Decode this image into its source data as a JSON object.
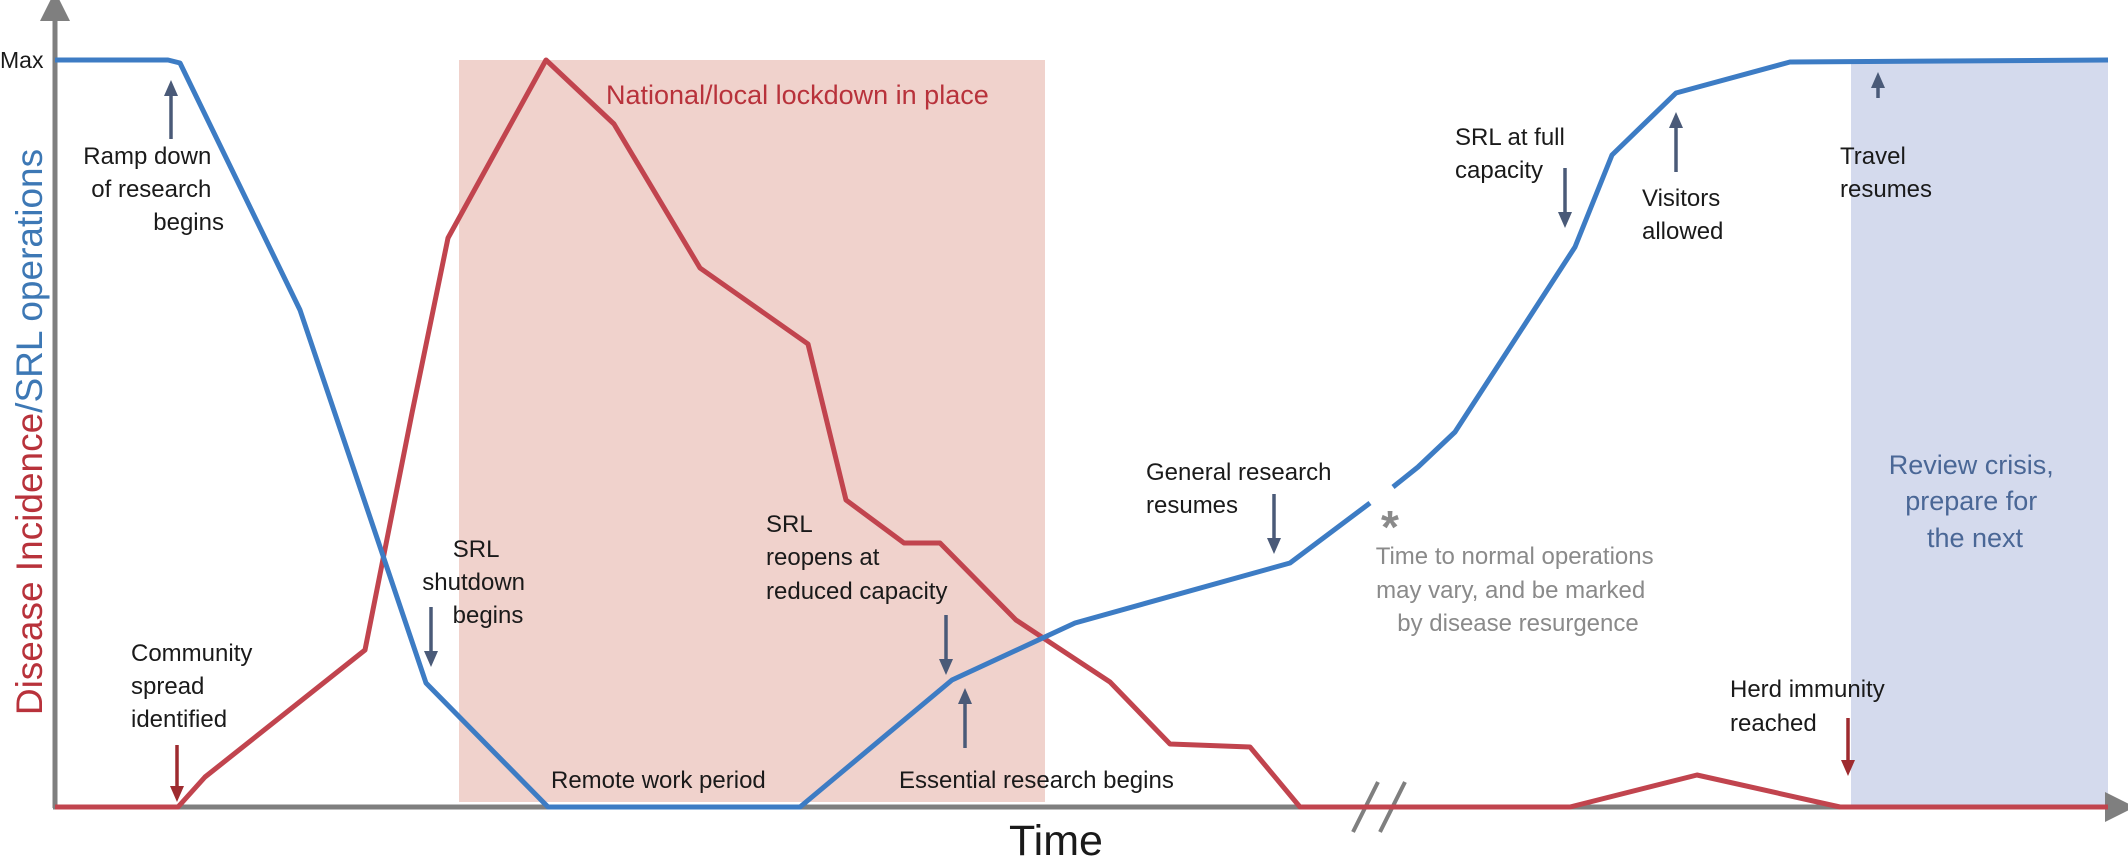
{
  "y_axis": {
    "label_part1": "Disease Incidence",
    "label_part2": "/SRL operations",
    "max_label": "Max"
  },
  "x_axis": {
    "label": "Time"
  },
  "colors": {
    "disease": "#c1444e",
    "srl": "#3d7cc4",
    "lockdown_fill": "#f0d2cc",
    "review_fill": "#d4daed",
    "annotation_arrow": "#4a5a78",
    "community_arrow": "#9e2b2f",
    "lockdown_text": "#b8323b",
    "review_text": "#4a6796",
    "note_text": "#8a8a8a",
    "axis": "#7f7f7f"
  },
  "regions": {
    "lockdown_label": "National/local lockdown in place",
    "review_label": [
      "Review crisis,",
      "prepare for",
      "the next"
    ]
  },
  "labels": {
    "ramp_down": [
      "Ramp down",
      "of research",
      "begins"
    ],
    "community": [
      "Community",
      "spread",
      "identified"
    ],
    "shutdown": [
      "SRL",
      "shutdown",
      "begins"
    ],
    "remote": "Remote work period",
    "reopens": [
      "SRL",
      "reopens at",
      "reduced capacity"
    ],
    "essential": "Essential research begins",
    "general": [
      "General research",
      "resumes"
    ],
    "note": [
      "Time to normal operations",
      "may vary, and be marked",
      "by disease resurgence"
    ],
    "asterisk": "*",
    "full_capacity": [
      "SRL at full",
      "capacity"
    ],
    "visitors": [
      "Visitors",
      "allowed"
    ],
    "travel": [
      "Travel",
      "resumes"
    ],
    "herd": [
      "Herd immunity",
      "reached"
    ]
  },
  "series": {
    "disease_name": "Disease Incidence",
    "srl_name": "SRL operations"
  }
}
